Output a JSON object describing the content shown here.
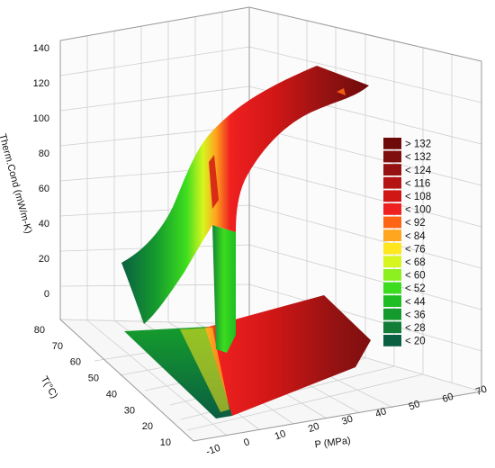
{
  "chart_data": {
    "type": "surface3d",
    "title": "",
    "zlabel": "Therm.Cond (mW/m-K)",
    "xlabel": "P (MPa)",
    "ylabel": "T(°C)",
    "zlim": [
      -10,
      140
    ],
    "xlim": [
      -10,
      70
    ],
    "ylim": [
      10,
      80
    ],
    "z_ticks": [
      "0",
      "20",
      "40",
      "60",
      "80",
      "100",
      "120",
      "140"
    ],
    "x_ticks": [
      "-10",
      "0",
      "10",
      "20",
      "30",
      "40",
      "50",
      "60",
      "70"
    ],
    "y_ticks": [
      "10",
      "20",
      "30",
      "40",
      "50",
      "60",
      "70",
      "80"
    ],
    "grid": true,
    "legend_position": "right",
    "legend": [
      {
        "label": "> 132",
        "color": "#6e0a0a"
      },
      {
        "label": "< 132",
        "color": "#7f0f0f"
      },
      {
        "label": "< 124",
        "color": "#961212"
      },
      {
        "label": "< 116",
        "color": "#b41414"
      },
      {
        "label": "< 108",
        "color": "#d11616"
      },
      {
        "label": "< 100",
        "color": "#ef2020"
      },
      {
        "label": "< 92",
        "color": "#ff6414"
      },
      {
        "label": "< 84",
        "color": "#ffa51e"
      },
      {
        "label": "< 76",
        "color": "#ffe61e"
      },
      {
        "label": "< 68",
        "color": "#d7f51e"
      },
      {
        "label": "< 60",
        "color": "#8cf01e"
      },
      {
        "label": "< 52",
        "color": "#3cdc1e"
      },
      {
        "label": "< 44",
        "color": "#1ebe23"
      },
      {
        "label": "< 36",
        "color": "#159b2d"
      },
      {
        "label": "< 28",
        "color": "#117d37"
      },
      {
        "label": "< 20",
        "color": "#0a5f41"
      }
    ]
  }
}
